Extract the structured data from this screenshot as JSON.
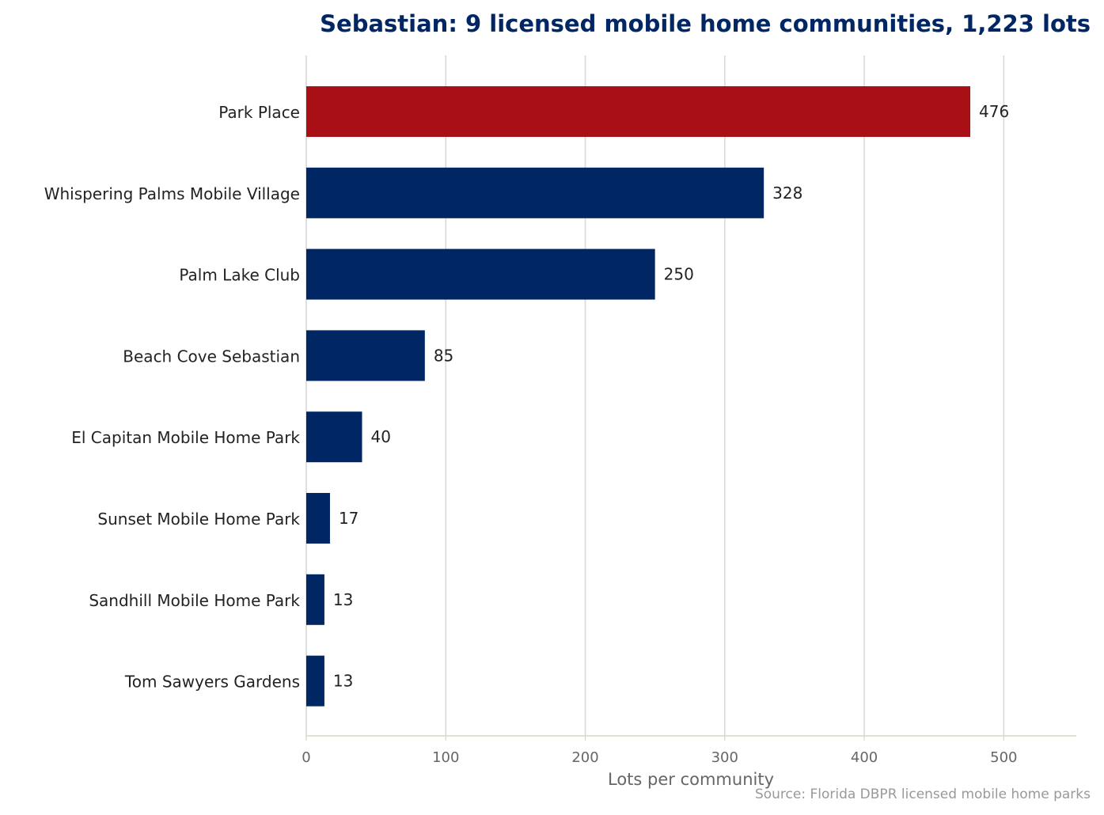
{
  "chart_data": {
    "type": "bar",
    "orientation": "horizontal",
    "title": "Sebastian: 9 licensed mobile home communities, 1,223 lots",
    "xlabel": "Lots per community",
    "ylabel": "",
    "source": "Source: Florida DBPR licensed mobile home parks",
    "categories": [
      "Park Place",
      "Whispering Palms Mobile Village",
      "Palm Lake Club",
      "Beach Cove Sebastian",
      "El Capitan Mobile Home Park",
      "Sunset Mobile Home Park",
      "Sandhill Mobile Home Park",
      "Tom Sawyers Gardens"
    ],
    "values": [
      476,
      328,
      250,
      85,
      40,
      17,
      13,
      13
    ],
    "highlight_index": 0,
    "xlim": [
      0,
      552
    ],
    "xticks": [
      0,
      100,
      200,
      300,
      400,
      500
    ],
    "grid": "vertical",
    "colors": {
      "bar": "#002664",
      "highlight": "#a81015",
      "grid": "#d9d9d9",
      "axis": "#d6d6c8"
    }
  }
}
